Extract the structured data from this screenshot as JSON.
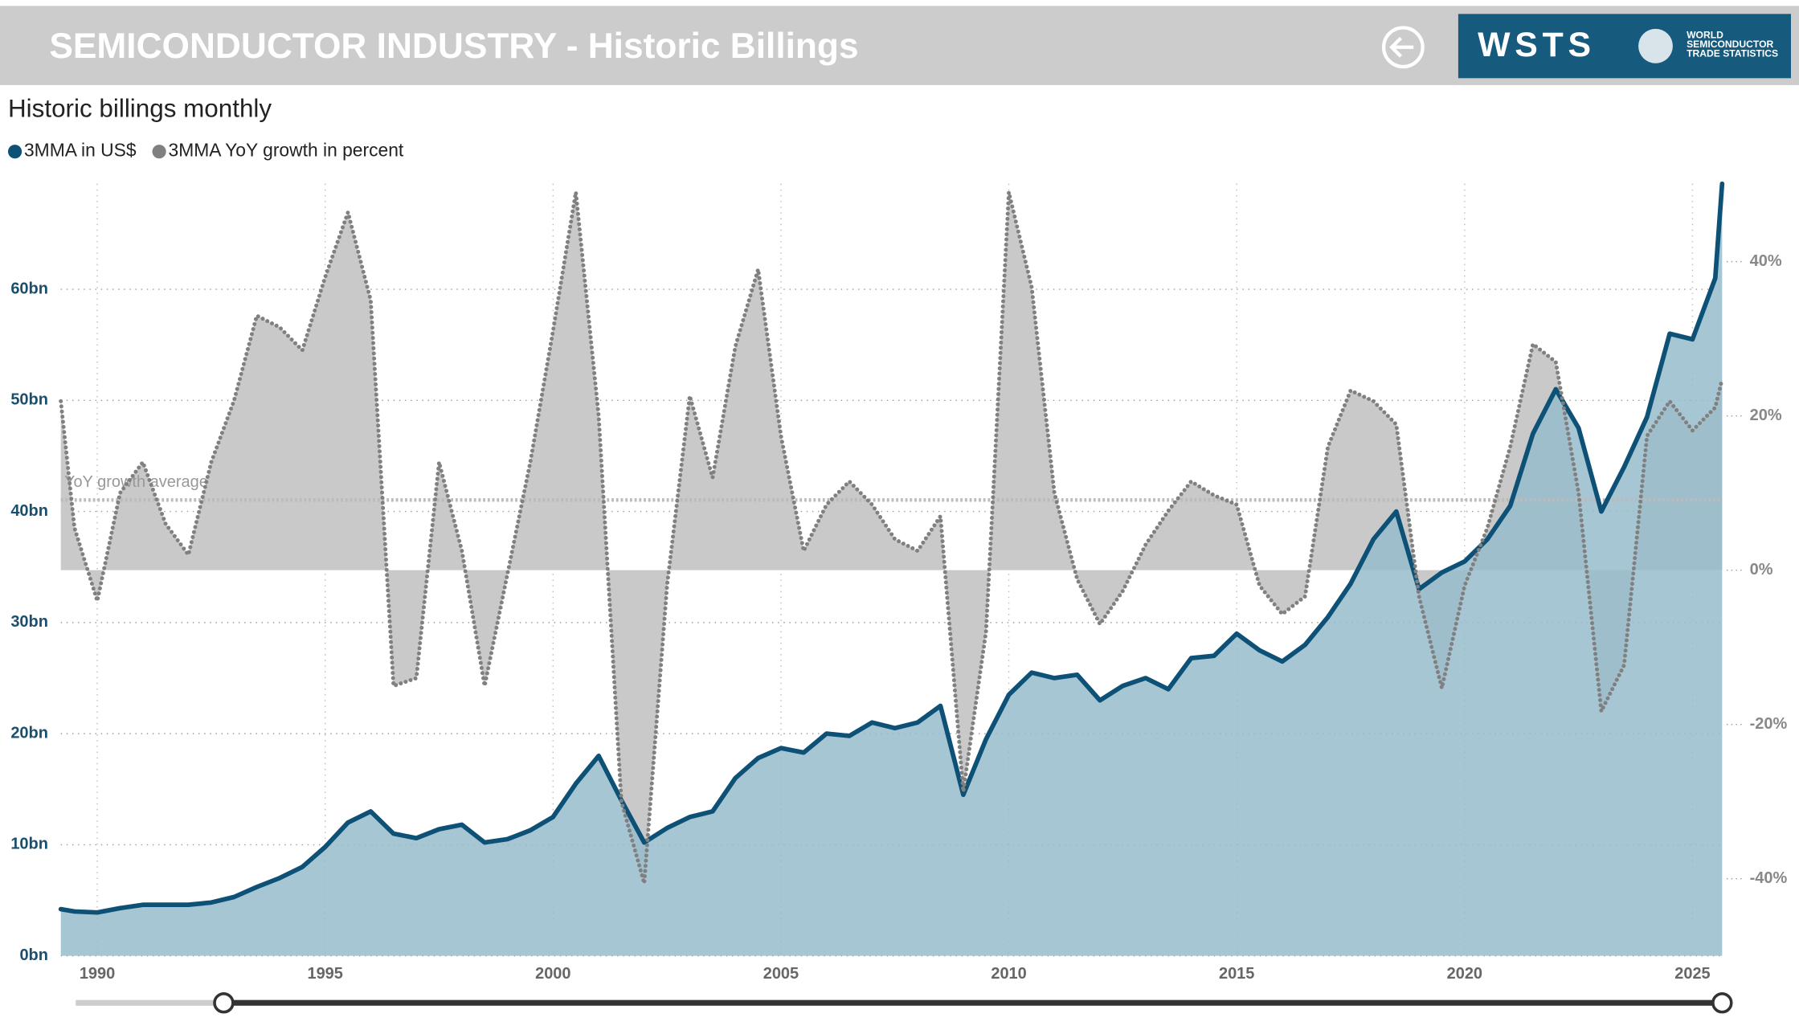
{
  "header": {
    "title": "SEMICONDUCTOR INDUSTRY - Historic Billings",
    "logo": {
      "mark": "WSTS",
      "lines": [
        "WORLD",
        "SEMICONDUCTOR",
        "TRADE STATISTICS"
      ]
    }
  },
  "chart_data": {
    "type": "area",
    "title": "Historic billings monthly",
    "x": [
      1989.2,
      1989.5,
      1990,
      1990.5,
      1991,
      1991.5,
      1992,
      1992.5,
      1993,
      1993.5,
      1994,
      1994.5,
      1995,
      1995.5,
      1996,
      1996.5,
      1997,
      1997.5,
      1998,
      1998.5,
      1999,
      1999.5,
      2000,
      2000.5,
      2001,
      2001.5,
      2002,
      2002.5,
      2003,
      2003.5,
      2004,
      2004.5,
      2005,
      2005.5,
      2006,
      2006.5,
      2007,
      2007.5,
      2008,
      2008.5,
      2009,
      2009.5,
      2010,
      2010.5,
      2011,
      2011.5,
      2012,
      2012.5,
      2013,
      2013.5,
      2014,
      2014.5,
      2015,
      2015.5,
      2016,
      2016.5,
      2017,
      2017.5,
      2018,
      2018.5,
      2019,
      2019.5,
      2020,
      2020.5,
      2021,
      2021.5,
      2022,
      2022.5,
      2023,
      2023.5,
      2024,
      2024.5,
      2025,
      2025.5,
      2025.65
    ],
    "series": [
      {
        "name": "3MMA in US$",
        "color": "#0d5177",
        "fill": "#98bccc",
        "axis": "y",
        "line_style": "solid",
        "values": [
          4.2,
          4.0,
          3.9,
          4.3,
          4.6,
          4.6,
          4.6,
          4.8,
          5.3,
          6.2,
          7.0,
          8.0,
          9.8,
          12.0,
          13.0,
          11.0,
          10.6,
          11.4,
          11.8,
          10.2,
          10.5,
          11.3,
          12.5,
          15.5,
          18.0,
          14.0,
          10.2,
          11.5,
          12.5,
          13.0,
          16.0,
          17.8,
          18.7,
          18.3,
          20.0,
          19.8,
          21.0,
          20.5,
          21.0,
          22.5,
          14.5,
          19.5,
          23.5,
          25.5,
          25.0,
          25.3,
          23.0,
          24.3,
          25.0,
          24.0,
          26.8,
          27.0,
          29.0,
          27.5,
          26.5,
          28.0,
          30.5,
          33.5,
          37.5,
          40.0,
          33.0,
          34.5,
          35.5,
          37.5,
          40.5,
          47.0,
          51.0,
          47.5,
          40.0,
          44.0,
          48.5,
          56.0,
          55.5,
          61.0,
          69.5
        ]
      },
      {
        "name": "3MMA YoY growth in percent",
        "color": "#808080",
        "fill": "#c9c9c9",
        "axis": "y2",
        "line_style": "dotted",
        "values": [
          21.9,
          5.5,
          -4,
          10,
          14,
          6,
          2,
          14,
          22,
          33,
          31.5,
          28.5,
          38,
          46.4,
          35,
          -15,
          -14,
          14,
          2.5,
          -15,
          -0.5,
          14,
          31,
          49,
          20,
          -30,
          -40.6,
          -2,
          22.6,
          12,
          29,
          39,
          17.4,
          2.5,
          8.5,
          11.5,
          8.5,
          4,
          2.5,
          7,
          -28.7,
          -8,
          49,
          36.7,
          10,
          -1.2,
          -7,
          -2.7,
          3.3,
          7.7,
          11.5,
          9.7,
          8.5,
          -2,
          -5.7,
          -3.4,
          16,
          23.3,
          21.9,
          18.9,
          -3.4,
          -15.3,
          -2,
          5.5,
          16,
          29.3,
          27,
          10,
          -18.3,
          -12.3,
          17.4,
          21.9,
          18.1,
          21.1,
          24.8
        ]
      }
    ],
    "average": {
      "label": "YoY growth average",
      "value": 9.1
    },
    "xlim": [
      1989.2,
      2025.65
    ],
    "xticks": [
      1990,
      1995,
      2000,
      2005,
      2010,
      2015,
      2020,
      2025
    ],
    "ylim": [
      0,
      69.5
    ],
    "yticks": [
      {
        "value": 0,
        "label": "0bn"
      },
      {
        "value": 10,
        "label": "10bn"
      },
      {
        "value": 20,
        "label": "20bn"
      },
      {
        "value": 30,
        "label": "30bn"
      },
      {
        "value": 40,
        "label": "40bn"
      },
      {
        "value": 50,
        "label": "50bn"
      },
      {
        "value": 60,
        "label": "60bn"
      }
    ],
    "y2lim": [
      -50,
      50.1
    ],
    "y2ticks": [
      {
        "value": -40,
        "label": "-40%"
      },
      {
        "value": -20,
        "label": "-20%"
      },
      {
        "value": 0,
        "label": "0%"
      },
      {
        "value": 20,
        "label": "20%"
      },
      {
        "value": 40,
        "label": "40%"
      }
    ],
    "grid": true
  }
}
